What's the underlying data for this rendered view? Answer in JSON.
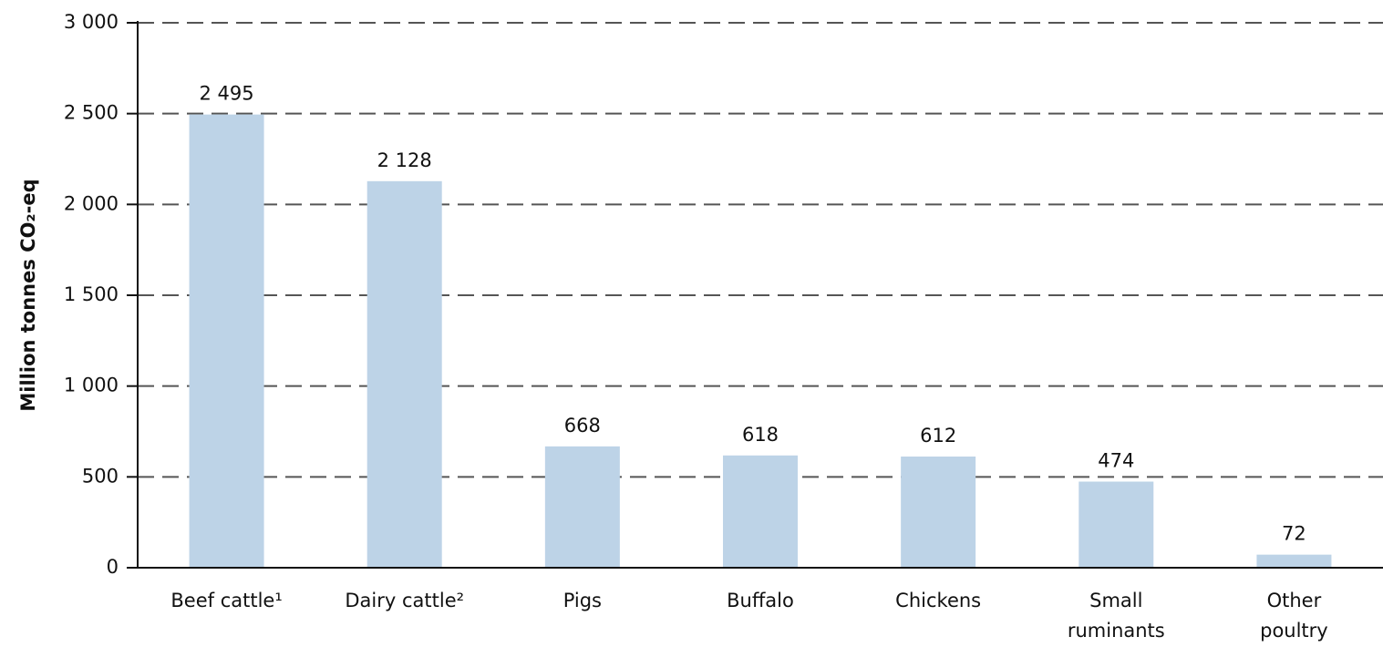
{
  "chart_data": {
    "type": "bar",
    "y_label": "Million tonnes CO₂-eq",
    "categories": [
      "Beef cattle¹",
      "Dairy cattle²",
      "Pigs",
      "Buffalo",
      "Chickens",
      "Small\nruminants",
      "Other\npoultry"
    ],
    "values": [
      2495,
      2128,
      668,
      618,
      612,
      474,
      72
    ],
    "value_labels": [
      "2 495",
      "2 128",
      "668",
      "618",
      "612",
      "474",
      "72"
    ],
    "color": "#bdd3e7",
    "ylim": [
      0,
      3000
    ],
    "yticks": [
      0,
      500,
      {
        "value": 1000,
        "label": "1 000"
      },
      {
        "value": 1500,
        "label": "1 500"
      },
      {
        "value": 2000,
        "label": "2 000"
      },
      {
        "value": 2500,
        "label": "2 500"
      },
      {
        "value": 3000,
        "label": "3 000"
      }
    ],
    "grid": true
  }
}
